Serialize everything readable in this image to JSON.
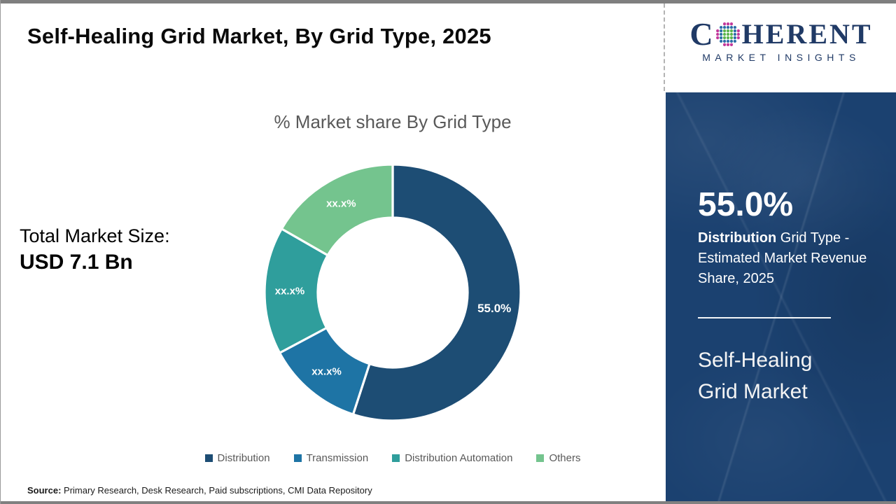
{
  "page": {
    "title": "Self-Healing Grid Market, By Grid Type, 2025",
    "source": {
      "label": "Source:",
      "text": " Primary Research, Desk Research, Paid subscriptions, CMI Data Repository"
    }
  },
  "logo": {
    "brand_first_letter": "C",
    "brand_rest": "HERENT",
    "brand_sub": "MARKET INSIGHTS",
    "brand_color": "#203a66",
    "globe_colors": {
      "inner": "#5cb54e",
      "mid": "#2c6fa8",
      "outer": "#c2399b"
    }
  },
  "left_panel": {
    "total_label": "Total Market Size:",
    "total_value": "USD 7.1 Bn"
  },
  "chart_data": {
    "type": "pie",
    "variant": "donut",
    "title": "% Market share By Grid Type",
    "legend_position": "bottom",
    "start_angle_deg": 0,
    "direction": "clockwise",
    "categories": [
      "Distribution",
      "Transmission",
      "Distribution Automation",
      "Others"
    ],
    "segments": [
      {
        "name": "Distribution",
        "label": "55.0%",
        "value_pct": 55.0,
        "draw_share_pct": 55.0,
        "color": "#1d4d74"
      },
      {
        "name": "Transmission",
        "label": "xx.x%",
        "value_pct": null,
        "draw_share_pct": 12.2,
        "color": "#1e74a5"
      },
      {
        "name": "Distribution Automation",
        "label": "xx.x%",
        "value_pct": null,
        "draw_share_pct": 16.1,
        "color": "#2f9e9c"
      },
      {
        "name": "Others",
        "label": "xx.x%",
        "value_pct": null,
        "draw_share_pct": 16.7,
        "color": "#74c48e"
      }
    ]
  },
  "sidebar": {
    "background": "#1b4170",
    "headline_value": "55.0%",
    "highlight_segment": "Distribution",
    "description_rest": " Grid Type - Estimated Market Revenue Share, 2025",
    "product_line1": "Self-Healing",
    "product_line2": "Grid Market"
  }
}
